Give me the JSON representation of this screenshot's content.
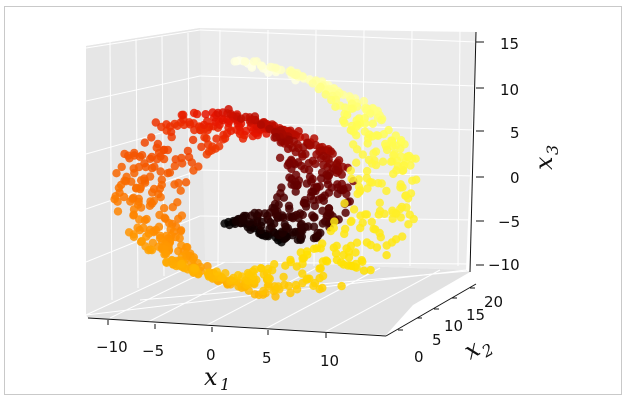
{
  "chart_data": {
    "type": "scatter",
    "projection": "3d",
    "title": "",
    "xlabel": "x",
    "xlabel_sub": "1",
    "ylabel": "x",
    "ylabel_sub": "2",
    "zlabel": "x",
    "zlabel_sub": "3",
    "x_ticks": [
      "−10",
      "−5",
      "0",
      "5",
      "10"
    ],
    "y_ticks": [
      "0",
      "5",
      "10",
      "15",
      "20"
    ],
    "z_ticks": [
      "15",
      "10",
      "5",
      "0",
      "−5",
      "−10"
    ],
    "xlim": [
      -11,
      14
    ],
    "ylim": [
      0,
      22
    ],
    "zlim": [
      -12,
      15
    ],
    "grid": true,
    "colormap": "hot",
    "color_stops": [
      "#000000",
      "#8b0000",
      "#e60000",
      "#ff8c00",
      "#ffd700",
      "#ffff66",
      "#fffff0"
    ],
    "description": "Swiss roll manifold: spiral in x1-x3 plane, extended along x2; color follows position along the spiral",
    "t_range": [
      4.7,
      14.1
    ],
    "n_points": 1000
  }
}
